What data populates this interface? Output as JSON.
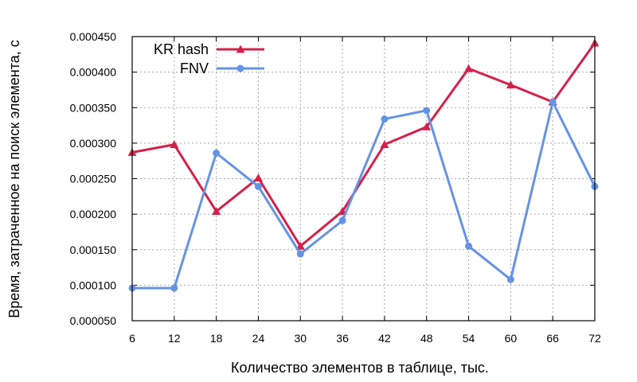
{
  "chart_data": {
    "type": "line",
    "xlabel": "Количество элементов в таблице, тыс.",
    "ylabel": "Время, затраченное на поиск элемента, с",
    "x": [
      6,
      12,
      18,
      24,
      30,
      36,
      42,
      48,
      54,
      60,
      66,
      72
    ],
    "x_tick_labels": [
      "6",
      "12",
      "18",
      "24",
      "30",
      "36",
      "42",
      "48",
      "54",
      "60",
      "66",
      "72"
    ],
    "ylim": [
      5e-05,
      0.00045
    ],
    "y_ticks": [
      5e-05,
      0.0001,
      0.00015,
      0.0002,
      0.00025,
      0.0003,
      0.00035,
      0.0004,
      0.00045
    ],
    "y_tick_labels": [
      "0.000050",
      "0.000100",
      "0.000150",
      "0.000200",
      "0.000250",
      "0.000300",
      "0.000350",
      "0.000400",
      "0.000450"
    ],
    "grid": true,
    "legend_position": "top-left",
    "series": [
      {
        "name": "KR hash",
        "color": "#d6204a",
        "marker": "triangle",
        "values": [
          0.000287,
          0.000298,
          0.000204,
          0.000251,
          0.000155,
          0.000204,
          0.000298,
          0.000323,
          0.000405,
          0.000382,
          0.000358,
          0.000441
        ]
      },
      {
        "name": "FNV",
        "color": "#6593e4",
        "marker": "circle",
        "values": [
          9.6e-05,
          9.6e-05,
          0.000286,
          0.000239,
          0.000144,
          0.000191,
          0.000334,
          0.000346,
          0.000155,
          0.000108,
          0.000358,
          0.000239
        ]
      }
    ]
  }
}
